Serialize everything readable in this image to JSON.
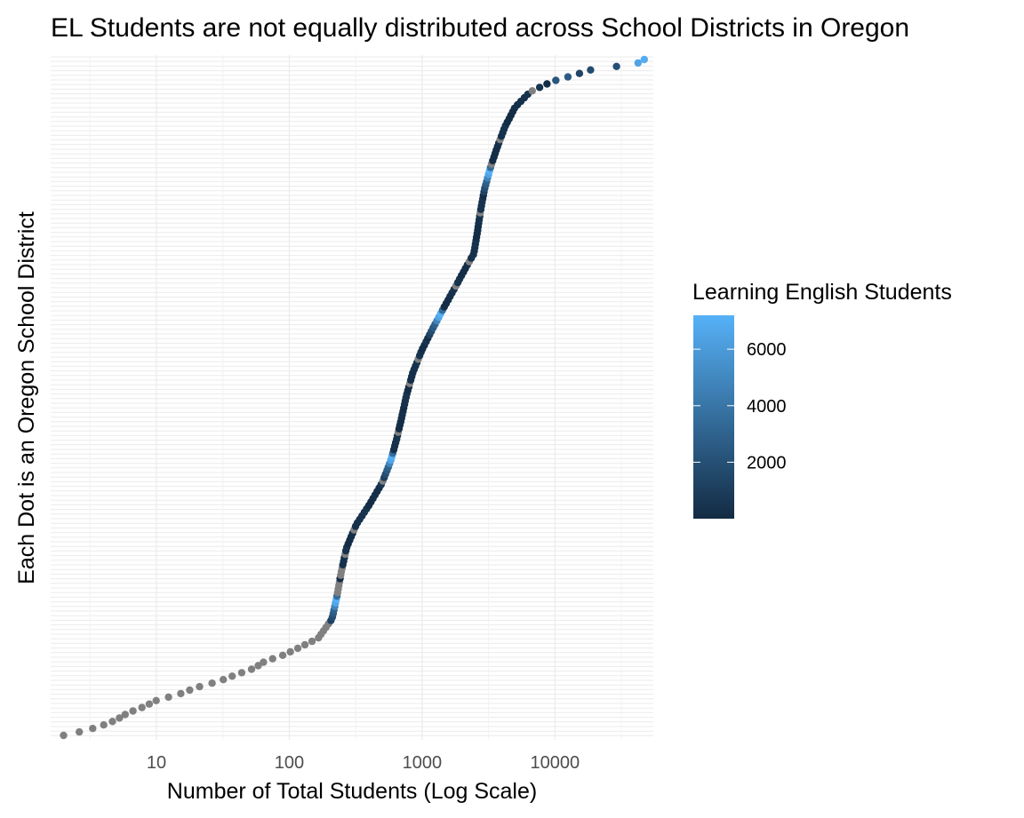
{
  "chart_data": {
    "type": "scatter",
    "title": "EL Students are not equally distributed across School Districts in Oregon",
    "xlabel": "Number of Total Students (Log Scale)",
    "ylabel": "Each Dot is an Oregon School District",
    "x_scale": "log10",
    "x_ticks": [
      10,
      100,
      1000,
      10000
    ],
    "x_tick_labels": [
      "10",
      "100",
      "1000",
      "10000"
    ],
    "xlim": [
      1.6,
      55000
    ],
    "grid": true,
    "legend": {
      "title": "Learning English Students",
      "position": "right",
      "type": "colorbar",
      "range": [
        0,
        7200
      ],
      "ticks": [
        2000,
        4000,
        6000
      ],
      "tick_labels": [
        "2000",
        "4000",
        "6000"
      ],
      "low_color": "#132B43",
      "high_color": "#56B1F7",
      "na_color": "#808080"
    },
    "shape_points": [
      [
        2,
        0
      ],
      [
        3,
        4
      ],
      [
        4,
        8
      ],
      [
        5,
        12
      ],
      [
        6,
        17
      ],
      [
        8,
        22
      ],
      [
        10,
        27
      ],
      [
        15,
        32
      ],
      [
        20,
        37
      ],
      [
        30,
        42
      ],
      [
        40,
        47
      ],
      [
        55,
        52
      ],
      [
        65,
        57
      ],
      [
        90,
        62
      ],
      [
        120,
        68
      ],
      [
        165,
        75
      ],
      [
        210,
        90
      ],
      [
        228,
        107
      ],
      [
        245,
        125
      ],
      [
        270,
        145
      ],
      [
        320,
        163
      ],
      [
        400,
        178
      ],
      [
        500,
        195
      ],
      [
        580,
        212
      ],
      [
        640,
        228
      ],
      [
        700,
        245
      ],
      [
        760,
        262
      ],
      [
        850,
        280
      ],
      [
        1000,
        298
      ],
      [
        1200,
        314
      ],
      [
        1450,
        330
      ],
      [
        1750,
        345
      ],
      [
        2100,
        360
      ],
      [
        2450,
        372
      ],
      [
        2600,
        388
      ],
      [
        2750,
        405
      ],
      [
        2950,
        422
      ],
      [
        3300,
        440
      ],
      [
        3700,
        455
      ],
      [
        4200,
        470
      ],
      [
        5000,
        485
      ],
      [
        6500,
        497
      ],
      [
        9500,
        505
      ],
      [
        14000,
        510
      ],
      [
        20000,
        515
      ],
      [
        40000,
        518
      ],
      [
        47000,
        522
      ]
    ],
    "series": [
      {
        "name": "",
        "count": 195,
        "el_values": [
          0,
          0,
          0,
          0,
          120,
          0,
          0,
          0,
          20,
          0,
          0,
          0,
          30,
          0,
          50,
          0,
          0,
          80,
          0,
          0,
          60,
          0,
          90,
          0,
          0,
          150,
          0,
          0,
          300,
          0,
          0,
          500,
          0,
          1200,
          1800,
          2500,
          3000,
          4800,
          6500,
          7100,
          3500
        ]
      }
    ]
  }
}
